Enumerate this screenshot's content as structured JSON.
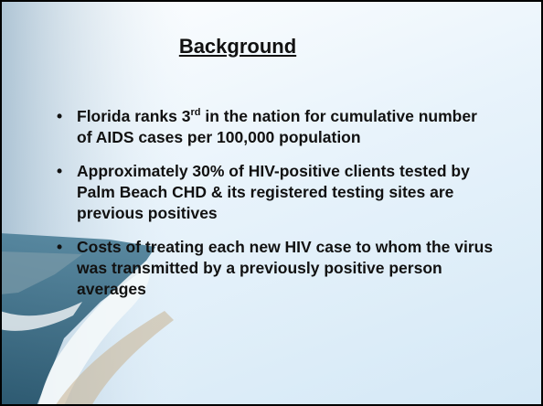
{
  "title": "Background",
  "bullets": [
    {
      "before": "Florida ranks 3",
      "sup": "rd",
      "after": " in the nation for cumulative number of AIDS cases per 100,000 population"
    },
    "Approximately 30% of HIV-positive clients tested by Palm Beach CHD & its registered testing sites are previous positives",
    "Costs of treating each new HIV case to whom the virus was transmitted by a previously positive person averages"
  ]
}
